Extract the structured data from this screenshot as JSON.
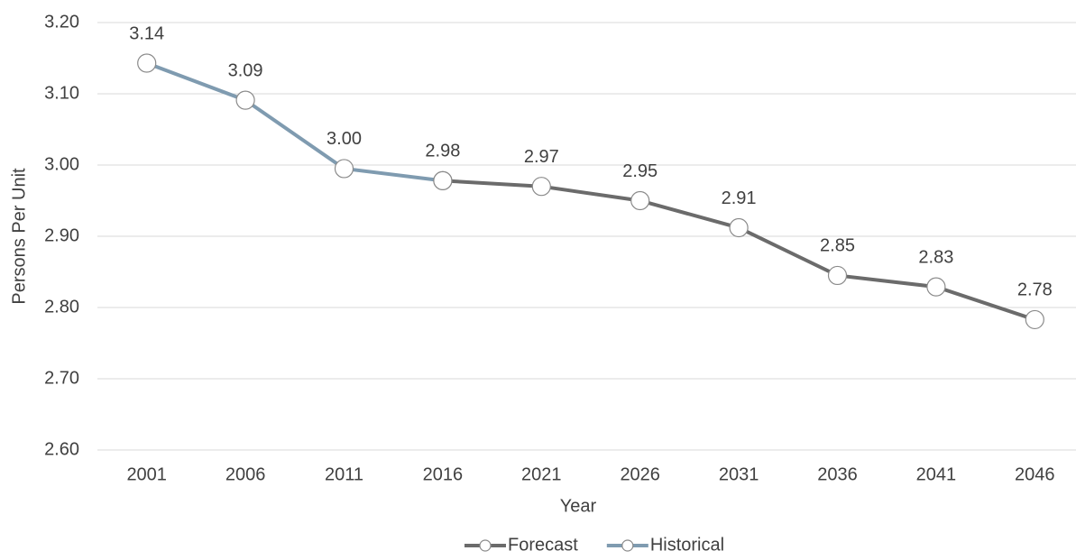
{
  "chart_data": {
    "type": "line",
    "y_label": "Persons Per Unit",
    "x_label": "Year",
    "categories": [
      "2001",
      "2006",
      "2011",
      "2016",
      "2021",
      "2026",
      "2031",
      "2036",
      "2041",
      "2046"
    ],
    "series": [
      {
        "name": "Forecast",
        "color": "#6b6b6b",
        "values": [
          null,
          null,
          null,
          2.978,
          2.97,
          2.95,
          2.912,
          2.845,
          2.829,
          2.783
        ],
        "value_labels": [
          null,
          null,
          null,
          null,
          "2.97",
          "2.95",
          "2.91",
          "2.85",
          "2.83",
          "2.78"
        ]
      },
      {
        "name": "Historical",
        "color": "#7f9bb0",
        "values": [
          3.143,
          3.091,
          2.995,
          2.978,
          null,
          null,
          null,
          null,
          null,
          null
        ],
        "value_labels": [
          "3.14",
          "3.09",
          "3.00",
          "2.98",
          null,
          null,
          null,
          null,
          null,
          null
        ]
      }
    ],
    "ylim": [
      2.6,
      3.2
    ],
    "yticks": [
      {
        "value": 2.6,
        "label": "2.60"
      },
      {
        "value": 2.7,
        "label": "2.70"
      },
      {
        "value": 2.8,
        "label": "2.80"
      },
      {
        "value": 2.9,
        "label": "2.90"
      },
      {
        "value": 3.0,
        "label": "3.00"
      },
      {
        "value": 3.1,
        "label": "3.10"
      },
      {
        "value": 3.2,
        "label": "3.20"
      }
    ],
    "grid": true,
    "legend": "bottom"
  }
}
